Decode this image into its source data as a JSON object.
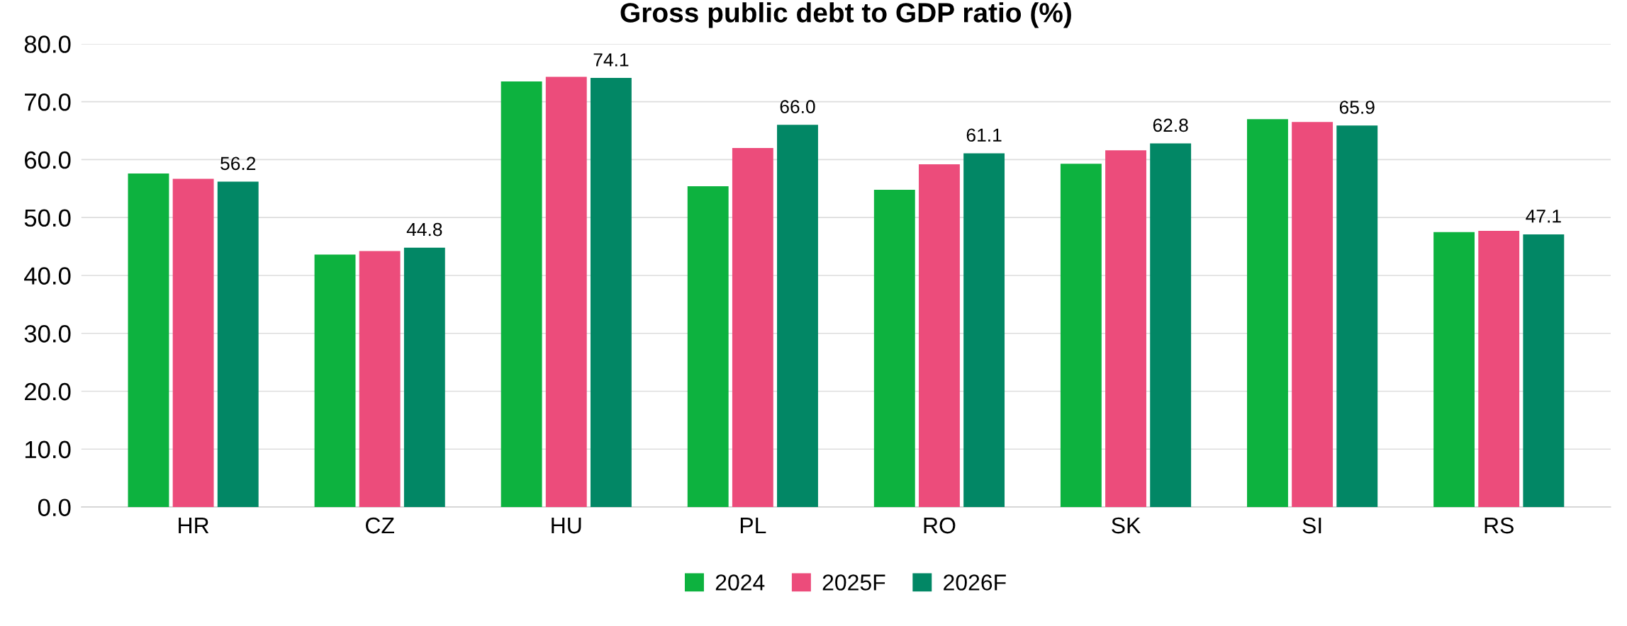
{
  "chart_data": {
    "type": "bar",
    "title": "Gross public debt to GDP ratio (%)",
    "categories": [
      "HR",
      "CZ",
      "HU",
      "PL",
      "RO",
      "SK",
      "SI",
      "RS"
    ],
    "series": [
      {
        "name": "2024",
        "color": "#0db23f",
        "values": [
          57.6,
          43.6,
          73.5,
          55.4,
          54.8,
          59.3,
          67.0,
          47.5
        ]
      },
      {
        "name": "2025F",
        "color": "#ec4c7b",
        "values": [
          56.7,
          44.2,
          74.3,
          62.0,
          59.2,
          61.6,
          66.5,
          47.7
        ]
      },
      {
        "name": "2026F",
        "color": "#028765",
        "values": [
          56.2,
          44.8,
          74.1,
          66.0,
          61.1,
          62.8,
          65.9,
          47.1
        ],
        "value_labels": [
          "56.2",
          "44.8",
          "74.1",
          "66.0",
          "61.1",
          "62.8",
          "65.9",
          "47.1"
        ]
      }
    ],
    "ylim": [
      0,
      80
    ],
    "yticks": [
      {
        "value": 0,
        "label": "0.0"
      },
      {
        "value": 10,
        "label": "10.0"
      },
      {
        "value": 20,
        "label": "20.0"
      },
      {
        "value": 30,
        "label": "30.0"
      },
      {
        "value": 40,
        "label": "40.0"
      },
      {
        "value": 50,
        "label": "50.0"
      },
      {
        "value": 60,
        "label": "60.0"
      },
      {
        "value": 70,
        "label": "70.0"
      },
      {
        "value": 80,
        "label": "80.0"
      }
    ],
    "grid": "y",
    "legend": "bottom"
  }
}
